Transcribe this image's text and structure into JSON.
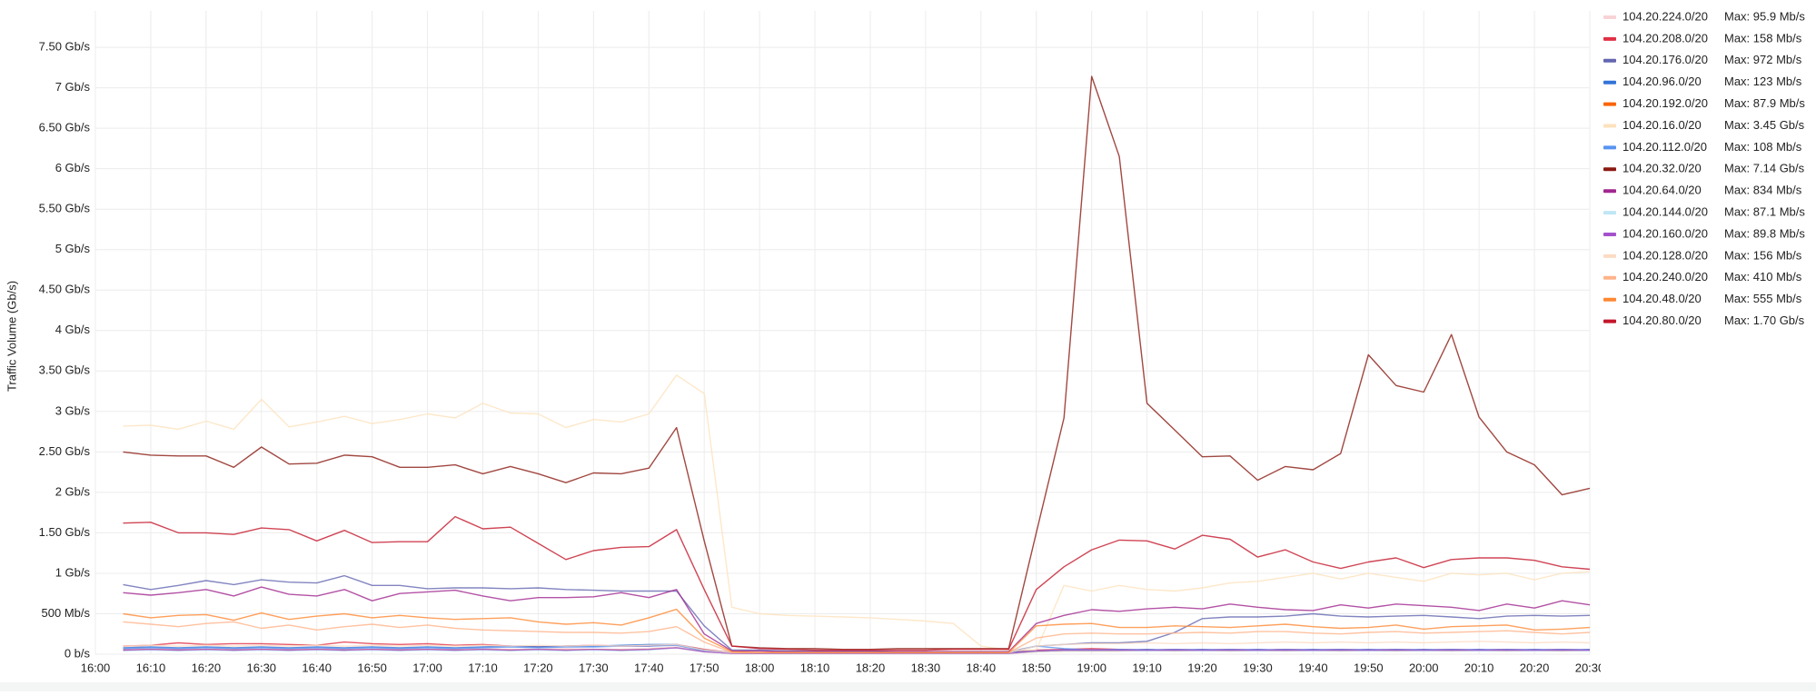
{
  "chart_data": {
    "type": "line",
    "y_label": "Traffic Volume (Gb/s)",
    "x": [
      "16:05",
      "16:10",
      "16:15",
      "16:20",
      "16:25",
      "16:30",
      "16:35",
      "16:40",
      "16:45",
      "16:50",
      "16:55",
      "17:00",
      "17:05",
      "17:10",
      "17:15",
      "17:20",
      "17:25",
      "17:30",
      "17:35",
      "17:40",
      "17:45",
      "17:50",
      "17:55",
      "18:00",
      "18:05",
      "18:10",
      "18:15",
      "18:20",
      "18:25",
      "18:30",
      "18:35",
      "18:40",
      "18:45",
      "18:50",
      "18:55",
      "19:00",
      "19:05",
      "19:10",
      "19:15",
      "19:20",
      "19:25",
      "19:30",
      "19:35",
      "19:40",
      "19:45",
      "19:50",
      "19:55",
      "20:00",
      "20:05",
      "20:10",
      "20:15",
      "20:20",
      "20:25",
      "20:30"
    ],
    "xlim": [
      "16:00",
      "20:30"
    ],
    "xticks": [
      "16:00",
      "16:10",
      "16:20",
      "16:30",
      "16:40",
      "16:50",
      "17:00",
      "17:10",
      "17:20",
      "17:30",
      "17:40",
      "17:50",
      "18:00",
      "18:10",
      "18:20",
      "18:30",
      "18:40",
      "18:50",
      "19:00",
      "19:10",
      "19:20",
      "19:30",
      "19:40",
      "19:50",
      "20:00",
      "20:10",
      "20:20",
      "20:30"
    ],
    "ylim": [
      0,
      7.95
    ],
    "yticks": [
      {
        "value": 0,
        "label": "0 b/s"
      },
      {
        "value": 0.5,
        "label": "500 Mb/s"
      },
      {
        "value": 1,
        "label": "1 Gb/s"
      },
      {
        "value": 1.5,
        "label": "1.50 Gb/s"
      },
      {
        "value": 2,
        "label": "2 Gb/s"
      },
      {
        "value": 2.5,
        "label": "2.50 Gb/s"
      },
      {
        "value": 3,
        "label": "3 Gb/s"
      },
      {
        "value": 3.5,
        "label": "3.50 Gb/s"
      },
      {
        "value": 4,
        "label": "4 Gb/s"
      },
      {
        "value": 4.5,
        "label": "4.50 Gb/s"
      },
      {
        "value": 5,
        "label": "5 Gb/s"
      },
      {
        "value": 5.5,
        "label": "5.50 Gb/s"
      },
      {
        "value": 6,
        "label": "6 Gb/s"
      },
      {
        "value": 6.5,
        "label": "6.50 Gb/s"
      },
      {
        "value": 7,
        "label": "7 Gb/s"
      },
      {
        "value": 7.5,
        "label": "7.50 Gb/s"
      }
    ],
    "grid": true,
    "series": [
      {
        "name": "104.20.224.0/20",
        "legend_max": "Max: 95.9 Mb/s",
        "color": "#f8d3d6",
        "values": [
          0.06,
          0.07,
          0.06,
          0.06,
          0.07,
          0.06,
          0.06,
          0.07,
          0.06,
          0.06,
          0.07,
          0.06,
          0.06,
          0.07,
          0.06,
          0.06,
          0.07,
          0.06,
          0.06,
          0.07,
          0.09,
          0.04,
          0.01,
          0.01,
          0.01,
          0.01,
          0.01,
          0.01,
          0.01,
          0.01,
          0.01,
          0.01,
          0.01,
          0.04,
          0.05,
          0.05,
          0.06,
          0.05,
          0.06,
          0.05,
          0.06,
          0.05,
          0.06,
          0.05,
          0.06,
          0.05,
          0.06,
          0.05,
          0.06,
          0.05,
          0.06,
          0.05,
          0.06,
          0.05
        ]
      },
      {
        "name": "104.20.208.0/20",
        "legend_max": "Max: 158 Mb/s",
        "color": "#e02f44",
        "values": [
          0.1,
          0.11,
          0.14,
          0.12,
          0.13,
          0.13,
          0.12,
          0.11,
          0.15,
          0.13,
          0.12,
          0.13,
          0.11,
          0.12,
          0.1,
          0.09,
          0.1,
          0.11,
          0.1,
          0.1,
          0.12,
          0.06,
          0.02,
          0.02,
          0.02,
          0.02,
          0.02,
          0.02,
          0.02,
          0.02,
          0.02,
          0.02,
          0.02,
          0.05,
          0.06,
          0.07,
          0.06,
          0.05,
          0.06,
          0.05,
          0.06,
          0.05,
          0.06,
          0.05,
          0.06,
          0.05,
          0.06,
          0.05,
          0.06,
          0.05,
          0.06,
          0.05,
          0.06,
          0.05
        ]
      },
      {
        "name": "104.20.176.0/20",
        "legend_max": "Max: 972 Mb/s",
        "color": "#6366b0",
        "values": [
          0.86,
          0.8,
          0.85,
          0.91,
          0.86,
          0.92,
          0.89,
          0.88,
          0.97,
          0.85,
          0.85,
          0.81,
          0.82,
          0.82,
          0.81,
          0.82,
          0.8,
          0.79,
          0.78,
          0.78,
          0.78,
          0.35,
          0.05,
          0.05,
          0.04,
          0.04,
          0.04,
          0.04,
          0.03,
          0.03,
          0.03,
          0.03,
          0.03,
          0.1,
          0.12,
          0.14,
          0.14,
          0.16,
          0.27,
          0.44,
          0.46,
          0.46,
          0.47,
          0.5,
          0.47,
          0.46,
          0.47,
          0.48,
          0.46,
          0.44,
          0.47,
          0.48,
          0.47,
          0.48
        ]
      },
      {
        "name": "104.20.96.0/20",
        "legend_max": "Max: 123 Mb/s",
        "color": "#3274d9",
        "values": [
          0.08,
          0.09,
          0.08,
          0.09,
          0.08,
          0.09,
          0.08,
          0.09,
          0.08,
          0.09,
          0.08,
          0.09,
          0.08,
          0.09,
          0.1,
          0.09,
          0.1,
          0.1,
          0.11,
          0.12,
          0.12,
          0.05,
          0.02,
          0.02,
          0.02,
          0.02,
          0.02,
          0.02,
          0.02,
          0.02,
          0.02,
          0.02,
          0.02,
          0.04,
          0.05,
          0.05,
          0.05,
          0.06,
          0.05,
          0.06,
          0.05,
          0.06,
          0.05,
          0.06,
          0.05,
          0.06,
          0.05,
          0.06,
          0.05,
          0.06,
          0.05,
          0.06,
          0.05,
          0.06
        ]
      },
      {
        "name": "104.20.192.0/20",
        "legend_max": "Max: 87.9 Mb/s",
        "color": "#fa6400",
        "values": [
          0.05,
          0.06,
          0.05,
          0.06,
          0.05,
          0.06,
          0.05,
          0.06,
          0.05,
          0.06,
          0.05,
          0.06,
          0.05,
          0.06,
          0.05,
          0.06,
          0.05,
          0.06,
          0.05,
          0.06,
          0.08,
          0.03,
          0.01,
          0.01,
          0.01,
          0.01,
          0.01,
          0.01,
          0.01,
          0.01,
          0.01,
          0.01,
          0.01,
          0.03,
          0.04,
          0.04,
          0.04,
          0.05,
          0.04,
          0.05,
          0.04,
          0.05,
          0.04,
          0.05,
          0.04,
          0.05,
          0.04,
          0.05,
          0.04,
          0.05,
          0.04,
          0.05,
          0.04,
          0.05
        ]
      },
      {
        "name": "104.20.16.0/20",
        "legend_max": "Max: 3.45 Gb/s",
        "color": "#fce2bd",
        "values": [
          2.82,
          2.83,
          2.78,
          2.88,
          2.78,
          3.15,
          2.81,
          2.87,
          2.94,
          2.85,
          2.9,
          2.97,
          2.92,
          3.1,
          2.98,
          2.97,
          2.8,
          2.9,
          2.87,
          2.97,
          3.45,
          3.22,
          0.58,
          0.5,
          0.48,
          0.47,
          0.46,
          0.45,
          0.43,
          0.41,
          0.38,
          0.1,
          0.05,
          0.05,
          0.85,
          0.78,
          0.85,
          0.8,
          0.78,
          0.82,
          0.88,
          0.9,
          0.95,
          1.0,
          0.93,
          1.0,
          0.95,
          0.9,
          1.0,
          0.98,
          1.0,
          0.92,
          1.0,
          1.02
        ]
      },
      {
        "name": "104.20.112.0/20",
        "legend_max": "Max: 108 Mb/s",
        "color": "#5794f2",
        "values": [
          0.07,
          0.08,
          0.07,
          0.08,
          0.07,
          0.08,
          0.07,
          0.08,
          0.07,
          0.08,
          0.07,
          0.08,
          0.07,
          0.08,
          0.09,
          0.08,
          0.09,
          0.09,
          0.1,
          0.1,
          0.11,
          0.04,
          0.02,
          0.02,
          0.02,
          0.02,
          0.02,
          0.02,
          0.02,
          0.02,
          0.02,
          0.02,
          0.02,
          0.1,
          0.07,
          0.05,
          0.06,
          0.05,
          0.06,
          0.05,
          0.06,
          0.05,
          0.06,
          0.05,
          0.06,
          0.05,
          0.06,
          0.05,
          0.06,
          0.05,
          0.06,
          0.05,
          0.06,
          0.05
        ]
      },
      {
        "name": "104.20.32.0/20",
        "legend_max": "Max: 7.14 Gb/s",
        "color": "#8a1a12",
        "values": [
          2.5,
          2.46,
          2.45,
          2.45,
          2.31,
          2.56,
          2.35,
          2.36,
          2.46,
          2.44,
          2.31,
          2.31,
          2.34,
          2.23,
          2.32,
          2.23,
          2.12,
          2.24,
          2.23,
          2.3,
          2.8,
          1.4,
          0.1,
          0.08,
          0.07,
          0.07,
          0.06,
          0.06,
          0.07,
          0.07,
          0.07,
          0.07,
          0.07,
          1.5,
          2.92,
          7.14,
          6.15,
          3.1,
          2.77,
          2.44,
          2.45,
          2.15,
          2.32,
          2.28,
          2.48,
          3.7,
          3.32,
          3.24,
          3.95,
          2.93,
          2.5,
          2.34,
          1.97,
          2.05
        ]
      },
      {
        "name": "104.20.64.0/20",
        "legend_max": "Max: 834 Mb/s",
        "color": "#a0278f",
        "values": [
          0.76,
          0.73,
          0.76,
          0.8,
          0.72,
          0.83,
          0.74,
          0.72,
          0.8,
          0.66,
          0.75,
          0.77,
          0.79,
          0.72,
          0.66,
          0.7,
          0.7,
          0.71,
          0.76,
          0.7,
          0.8,
          0.25,
          0.04,
          0.04,
          0.03,
          0.03,
          0.03,
          0.03,
          0.03,
          0.03,
          0.03,
          0.03,
          0.03,
          0.38,
          0.48,
          0.55,
          0.53,
          0.56,
          0.58,
          0.56,
          0.62,
          0.58,
          0.55,
          0.54,
          0.61,
          0.57,
          0.62,
          0.6,
          0.58,
          0.54,
          0.62,
          0.57,
          0.66,
          0.61
        ]
      },
      {
        "name": "104.20.144.0/20",
        "legend_max": "Max: 87.1 Mb/s",
        "color": "#c0e6f5",
        "values": [
          0.04,
          0.05,
          0.04,
          0.05,
          0.04,
          0.05,
          0.04,
          0.05,
          0.04,
          0.05,
          0.04,
          0.05,
          0.04,
          0.05,
          0.04,
          0.05,
          0.04,
          0.05,
          0.04,
          0.05,
          0.08,
          0.03,
          0.01,
          0.01,
          0.01,
          0.01,
          0.01,
          0.01,
          0.01,
          0.01,
          0.01,
          0.01,
          0.01,
          0.03,
          0.04,
          0.04,
          0.04,
          0.04,
          0.04,
          0.04,
          0.04,
          0.04,
          0.04,
          0.04,
          0.04,
          0.04,
          0.04,
          0.04,
          0.04,
          0.04,
          0.04,
          0.04,
          0.04,
          0.04
        ]
      },
      {
        "name": "104.20.160.0/20",
        "legend_max": "Max: 89.8 Mb/s",
        "color": "#a352cc",
        "values": [
          0.05,
          0.06,
          0.05,
          0.06,
          0.05,
          0.06,
          0.05,
          0.06,
          0.05,
          0.06,
          0.05,
          0.06,
          0.05,
          0.06,
          0.05,
          0.06,
          0.05,
          0.06,
          0.05,
          0.06,
          0.08,
          0.03,
          0.01,
          0.01,
          0.01,
          0.01,
          0.01,
          0.01,
          0.01,
          0.01,
          0.01,
          0.01,
          0.01,
          0.04,
          0.05,
          0.05,
          0.05,
          0.05,
          0.05,
          0.05,
          0.05,
          0.05,
          0.05,
          0.05,
          0.05,
          0.05,
          0.05,
          0.05,
          0.05,
          0.05,
          0.05,
          0.05,
          0.05,
          0.05
        ]
      },
      {
        "name": "104.20.128.0/20",
        "legend_max": "Max: 156 Mb/s",
        "color": "#fcdcc4",
        "values": [
          0.1,
          0.11,
          0.1,
          0.11,
          0.1,
          0.11,
          0.1,
          0.11,
          0.1,
          0.11,
          0.1,
          0.11,
          0.1,
          0.11,
          0.1,
          0.11,
          0.1,
          0.11,
          0.1,
          0.11,
          0.12,
          0.05,
          0.02,
          0.02,
          0.02,
          0.02,
          0.02,
          0.02,
          0.02,
          0.02,
          0.02,
          0.02,
          0.02,
          0.1,
          0.12,
          0.13,
          0.13,
          0.14,
          0.13,
          0.14,
          0.13,
          0.14,
          0.15,
          0.14,
          0.15,
          0.14,
          0.15,
          0.14,
          0.15,
          0.16,
          0.15,
          0.14,
          0.15,
          0.14
        ]
      },
      {
        "name": "104.20.240.0/20",
        "legend_max": "Max: 410 Mb/s",
        "color": "#ffb38a",
        "values": [
          0.4,
          0.37,
          0.34,
          0.38,
          0.4,
          0.32,
          0.36,
          0.3,
          0.34,
          0.37,
          0.33,
          0.36,
          0.32,
          0.3,
          0.29,
          0.28,
          0.27,
          0.27,
          0.26,
          0.28,
          0.34,
          0.15,
          0.02,
          0.02,
          0.02,
          0.02,
          0.02,
          0.02,
          0.02,
          0.02,
          0.02,
          0.02,
          0.02,
          0.2,
          0.25,
          0.26,
          0.25,
          0.25,
          0.26,
          0.27,
          0.26,
          0.28,
          0.28,
          0.26,
          0.25,
          0.27,
          0.28,
          0.26,
          0.27,
          0.28,
          0.29,
          0.27,
          0.25,
          0.27
        ]
      },
      {
        "name": "104.20.48.0/20",
        "legend_max": "Max: 555 Mb/s",
        "color": "#ff8833",
        "values": [
          0.5,
          0.45,
          0.48,
          0.49,
          0.42,
          0.51,
          0.43,
          0.47,
          0.5,
          0.45,
          0.48,
          0.45,
          0.43,
          0.44,
          0.45,
          0.4,
          0.37,
          0.39,
          0.36,
          0.45,
          0.555,
          0.2,
          0.03,
          0.02,
          0.02,
          0.02,
          0.02,
          0.02,
          0.02,
          0.02,
          0.02,
          0.02,
          0.02,
          0.35,
          0.37,
          0.38,
          0.33,
          0.33,
          0.35,
          0.34,
          0.33,
          0.35,
          0.37,
          0.34,
          0.32,
          0.33,
          0.36,
          0.31,
          0.34,
          0.35,
          0.36,
          0.3,
          0.31,
          0.33
        ]
      },
      {
        "name": "104.20.80.0/20",
        "legend_max": "Max: 1.70 Gb/s",
        "color": "#c4162a",
        "values": [
          1.62,
          1.63,
          1.5,
          1.5,
          1.48,
          1.56,
          1.54,
          1.4,
          1.53,
          1.38,
          1.39,
          1.39,
          1.7,
          1.55,
          1.57,
          1.37,
          1.17,
          1.28,
          1.32,
          1.33,
          1.54,
          0.8,
          0.1,
          0.07,
          0.06,
          0.05,
          0.05,
          0.05,
          0.05,
          0.05,
          0.06,
          0.06,
          0.06,
          0.8,
          1.08,
          1.29,
          1.41,
          1.4,
          1.3,
          1.47,
          1.42,
          1.2,
          1.29,
          1.14,
          1.06,
          1.14,
          1.19,
          1.07,
          1.17,
          1.19,
          1.19,
          1.16,
          1.08,
          1.05
        ]
      }
    ]
  }
}
